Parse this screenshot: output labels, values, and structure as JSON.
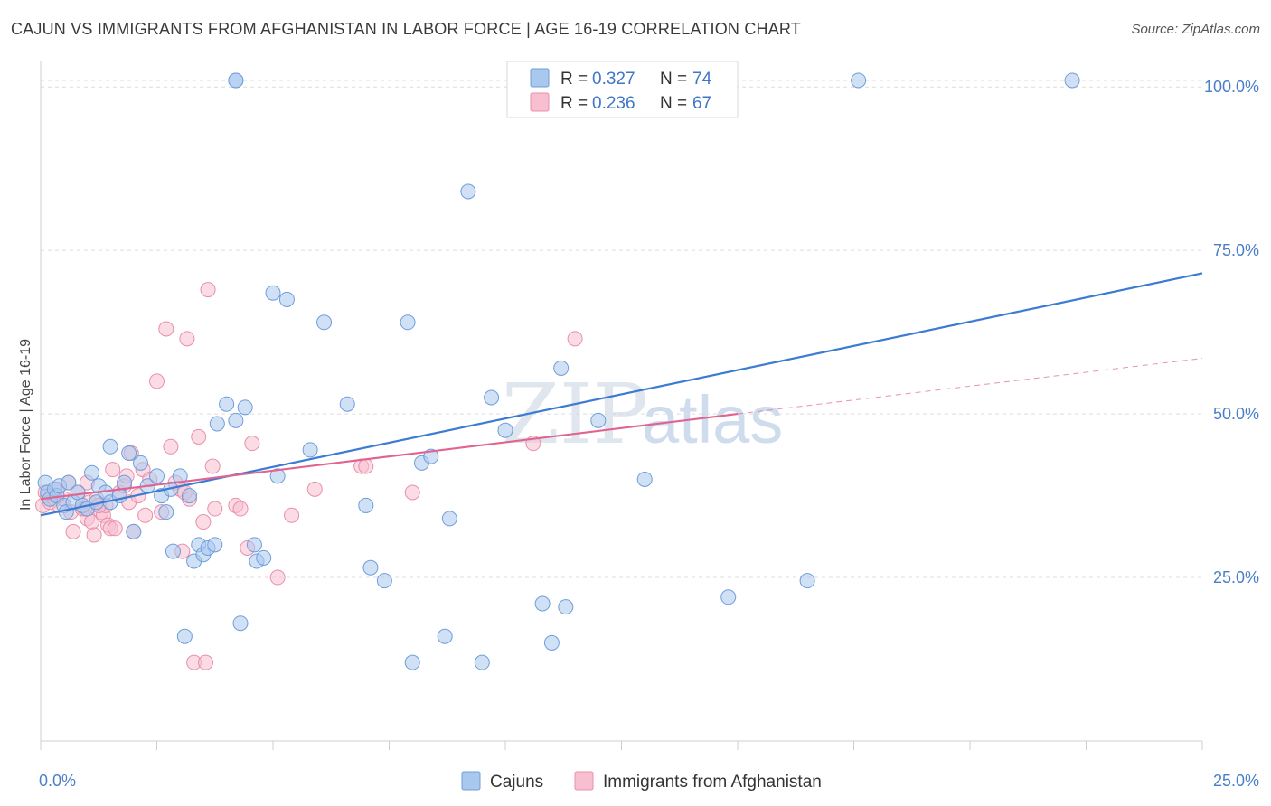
{
  "header": {
    "title": "CAJUN VS IMMIGRANTS FROM AFGHANISTAN IN LABOR FORCE | AGE 16-19 CORRELATION CHART",
    "source": "Source: ZipAtlas.com"
  },
  "watermark": {
    "zip": "ZIP",
    "atlas": "atlas"
  },
  "chart_data": {
    "type": "scatter",
    "title": "CAJUN VS IMMIGRANTS FROM AFGHANISTAN IN LABOR FORCE | AGE 16-19 CORRELATION CHART",
    "xlabel": "",
    "ylabel": "In Labor Force | Age 16-19",
    "xlim": [
      0,
      25
    ],
    "ylim": [
      0,
      105
    ],
    "x_tick_labels": [
      "0.0%",
      "25.0%"
    ],
    "y_ticks": [
      25,
      50,
      75,
      100
    ],
    "y_tick_labels": [
      "25.0%",
      "50.0%",
      "75.0%",
      "100.0%"
    ],
    "grid": true,
    "legend_position": "top-center",
    "colors": {
      "cajun": "#a9c8ee",
      "cajun_edge": "#6f9ddb",
      "cajun_line": "#3b7bd1",
      "afghan": "#f7bfd0",
      "afghan_edge": "#e88fab",
      "afghan_line": "#e0648f"
    },
    "legend": {
      "r_label": "R =",
      "n_label": "N =",
      "rows": [
        {
          "r": "0.327",
          "n": "74"
        },
        {
          "r": "0.236",
          "n": "67"
        }
      ]
    },
    "series": [
      {
        "name": "Cajuns",
        "r": 0.327,
        "n": 74,
        "trend": {
          "x": [
            0,
            25
          ],
          "y": [
            34.5,
            71.5
          ]
        },
        "points": [
          [
            0.1,
            39.5
          ],
          [
            0.15,
            38
          ],
          [
            0.2,
            37
          ],
          [
            0.3,
            38.5
          ],
          [
            0.35,
            37.5
          ],
          [
            0.4,
            39
          ],
          [
            0.5,
            36
          ],
          [
            0.55,
            35
          ],
          [
            0.6,
            39.5
          ],
          [
            0.7,
            36.5
          ],
          [
            0.8,
            38
          ],
          [
            0.9,
            36
          ],
          [
            1.0,
            35.5
          ],
          [
            1.1,
            41
          ],
          [
            1.2,
            36.5
          ],
          [
            1.25,
            39
          ],
          [
            1.4,
            38
          ],
          [
            1.5,
            36.5
          ],
          [
            1.5,
            45
          ],
          [
            1.7,
            37.5
          ],
          [
            1.8,
            39.5
          ],
          [
            1.9,
            44
          ],
          [
            2.0,
            32
          ],
          [
            2.15,
            42.5
          ],
          [
            2.3,
            39
          ],
          [
            2.5,
            40.5
          ],
          [
            2.6,
            37.5
          ],
          [
            2.7,
            35
          ],
          [
            2.8,
            38.5
          ],
          [
            2.85,
            29
          ],
          [
            3.0,
            40.5
          ],
          [
            3.1,
            16
          ],
          [
            3.2,
            37.5
          ],
          [
            3.3,
            27.5
          ],
          [
            3.4,
            30
          ],
          [
            3.5,
            28.5
          ],
          [
            3.6,
            29.5
          ],
          [
            3.75,
            30
          ],
          [
            3.8,
            48.5
          ],
          [
            4.0,
            51.5
          ],
          [
            4.2,
            49
          ],
          [
            4.3,
            18
          ],
          [
            4.4,
            51
          ],
          [
            4.6,
            30
          ],
          [
            4.65,
            27.5
          ],
          [
            4.8,
            28
          ],
          [
            5.0,
            68.5
          ],
          [
            5.1,
            40.5
          ],
          [
            5.3,
            67.5
          ],
          [
            5.8,
            44.5
          ],
          [
            6.1,
            64
          ],
          [
            6.6,
            51.5
          ],
          [
            7.0,
            36
          ],
          [
            7.1,
            26.5
          ],
          [
            7.4,
            24.5
          ],
          [
            7.9,
            64
          ],
          [
            8.0,
            12
          ],
          [
            8.2,
            42.5
          ],
          [
            8.4,
            43.5
          ],
          [
            8.7,
            16
          ],
          [
            8.8,
            34
          ],
          [
            9.2,
            84
          ],
          [
            9.5,
            12
          ],
          [
            9.7,
            52.5
          ],
          [
            10.0,
            47.5
          ],
          [
            10.8,
            21
          ],
          [
            11.0,
            15
          ],
          [
            11.2,
            57
          ],
          [
            11.3,
            20.5
          ],
          [
            12.0,
            49
          ],
          [
            13.0,
            40
          ],
          [
            14.8,
            22
          ],
          [
            16.5,
            24.5
          ],
          [
            4.2,
            101
          ]
        ],
        "extra_points_at_100": [
          [
            4.2,
            101
          ],
          [
            17.6,
            101
          ],
          [
            22.2,
            101
          ]
        ]
      },
      {
        "name": "Immigrants from Afghanistan",
        "r": 0.236,
        "n": 67,
        "trend": {
          "x": [
            0,
            15
          ],
          "y": [
            37.0,
            50.0
          ]
        },
        "trend_dashed": {
          "x": [
            15,
            25
          ],
          "y": [
            50.0,
            58.5
          ]
        },
        "points": [
          [
            0.05,
            36
          ],
          [
            0.1,
            38
          ],
          [
            0.15,
            37.5
          ],
          [
            0.2,
            36.5
          ],
          [
            0.3,
            37
          ],
          [
            0.35,
            38.5
          ],
          [
            0.4,
            36
          ],
          [
            0.5,
            37
          ],
          [
            0.6,
            39.5
          ],
          [
            0.65,
            35
          ],
          [
            0.7,
            32
          ],
          [
            0.8,
            38
          ],
          [
            0.9,
            35.5
          ],
          [
            1.0,
            34
          ],
          [
            1.05,
            36.5
          ],
          [
            1.1,
            33.5
          ],
          [
            1.15,
            31.5
          ],
          [
            1.2,
            37
          ],
          [
            1.3,
            35
          ],
          [
            1.35,
            34.5
          ],
          [
            1.4,
            36
          ],
          [
            1.45,
            33
          ],
          [
            1.5,
            32.5
          ],
          [
            1.55,
            41.5
          ],
          [
            1.6,
            32.5
          ],
          [
            1.7,
            38
          ],
          [
            1.8,
            39
          ],
          [
            1.85,
            40.5
          ],
          [
            1.9,
            36.5
          ],
          [
            1.95,
            44
          ],
          [
            2.0,
            32
          ],
          [
            2.2,
            41.5
          ],
          [
            2.25,
            34.5
          ],
          [
            2.5,
            55
          ],
          [
            2.6,
            35
          ],
          [
            2.7,
            63
          ],
          [
            2.8,
            45
          ],
          [
            2.9,
            39.5
          ],
          [
            3.0,
            38.5
          ],
          [
            3.05,
            29
          ],
          [
            3.1,
            38
          ],
          [
            3.15,
            61.5
          ],
          [
            3.2,
            37
          ],
          [
            3.3,
            12
          ],
          [
            3.4,
            46.5
          ],
          [
            3.5,
            33.5
          ],
          [
            3.55,
            12
          ],
          [
            3.6,
            69
          ],
          [
            3.7,
            42
          ],
          [
            3.75,
            35.5
          ],
          [
            4.2,
            36
          ],
          [
            4.3,
            35.5
          ],
          [
            4.45,
            29.5
          ],
          [
            4.55,
            45.5
          ],
          [
            5.1,
            25
          ],
          [
            5.4,
            34.5
          ],
          [
            5.9,
            38.5
          ],
          [
            6.9,
            42
          ],
          [
            7.0,
            42
          ],
          [
            8.0,
            38
          ],
          [
            10.6,
            45.5
          ],
          [
            11.5,
            61.5
          ],
          [
            1.0,
            39.5
          ],
          [
            0.95,
            35.5
          ],
          [
            1.25,
            36
          ],
          [
            2.1,
            37.5
          ],
          [
            2.35,
            40
          ]
        ]
      }
    ]
  },
  "bottom_legend": [
    "Cajuns",
    "Immigrants from Afghanistan"
  ]
}
